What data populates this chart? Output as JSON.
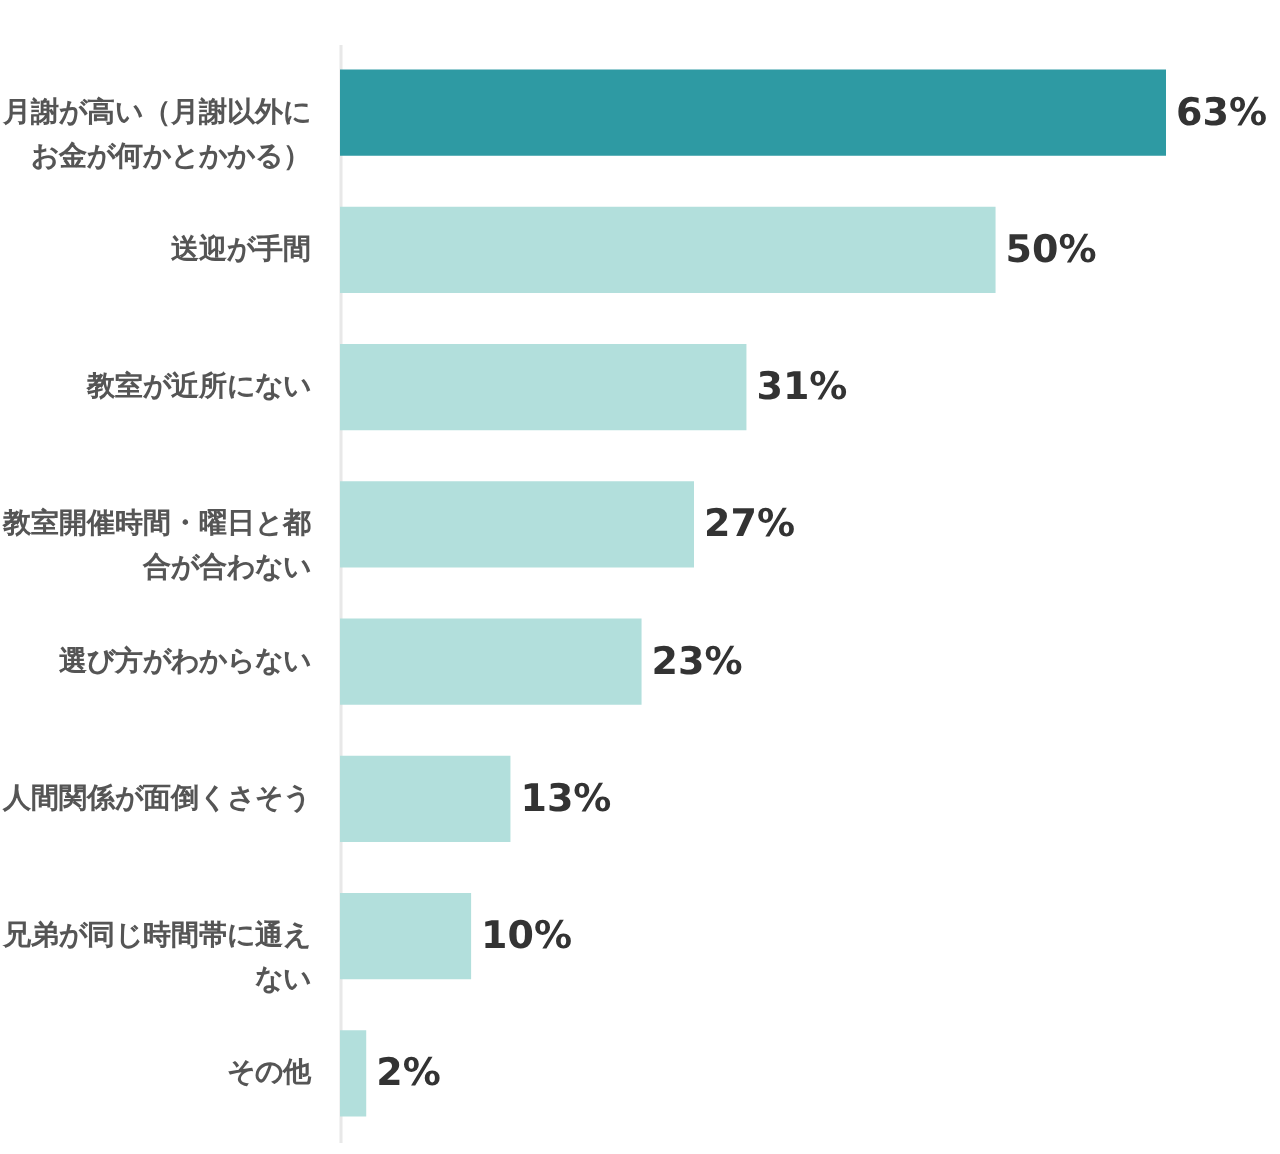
{
  "chart_data": {
    "type": "bar",
    "orientation": "horizontal",
    "tick_labels": "y",
    "categories": [
      "月謝が高い（月謝以外にお金が何かとかかる）",
      "送迎が手間",
      "教室が近所にない",
      "教室開催時間・曜日と都合が合わない",
      "選び方がわからない",
      "人間関係が面倒くさそう",
      "兄弟が同じ時間帯に通えない",
      "その他"
    ],
    "values": [
      63,
      50,
      31,
      27,
      23,
      13,
      10,
      2
    ],
    "colors": [
      "#2e9aa3",
      "#b2dfdc",
      "#b2dfdc",
      "#b2dfdc",
      "#b2dfdc",
      "#b2dfdc",
      "#b2dfdc",
      "#b2dfdc"
    ],
    "value_labels": [
      "63%",
      "50%",
      "31%",
      "27%",
      "23%",
      "13%",
      "10%",
      "2%"
    ]
  }
}
